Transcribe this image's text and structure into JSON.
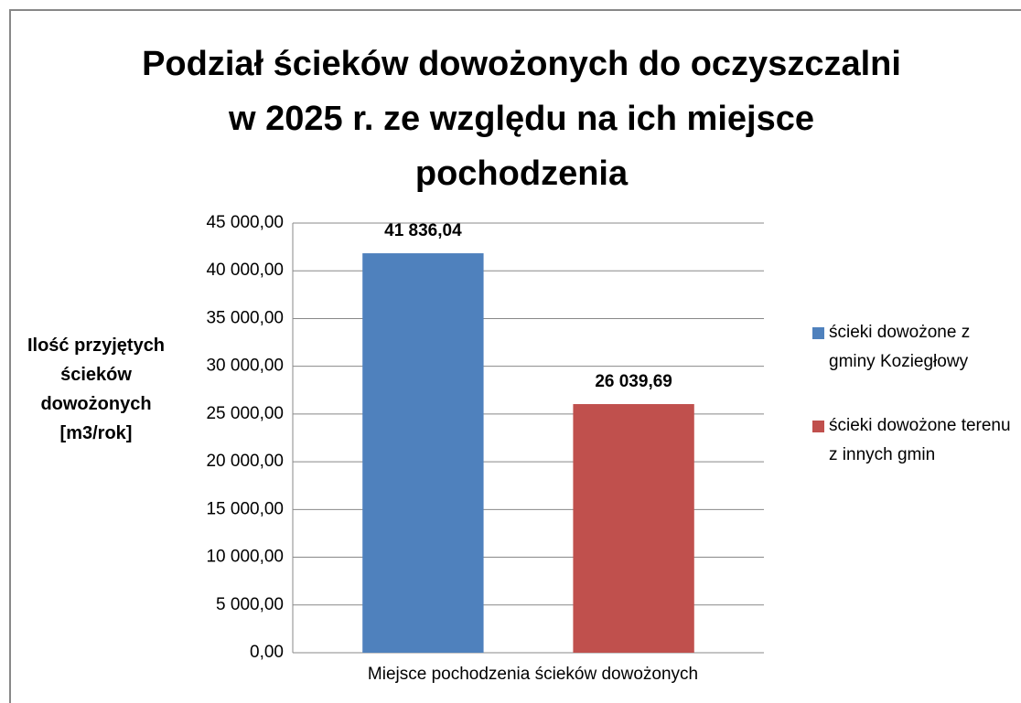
{
  "chart_data": {
    "type": "bar",
    "title": "Podział ścieków dowożonych do oczyszczalni w 2025 r. ze względu na ich miejsce pochodzenia",
    "y_label": "Ilość przyjętych ścieków dowożonych [m3/rok]",
    "categories": [
      "Miejsce pochodzenia ścieków dowożonych"
    ],
    "series": [
      {
        "name": "ścieki dowożone z gminy Koziegłowy",
        "color": "#4f81bd",
        "values": [
          41836.04
        ],
        "value_labels": [
          "41 836,04"
        ]
      },
      {
        "name": "ścieki dowożone terenu z innych gmin",
        "color": "#c0504d",
        "values": [
          26039.69
        ],
        "value_labels": [
          "26 039,69"
        ]
      }
    ],
    "ylim": [
      0,
      45000
    ],
    "yticks": [
      {
        "value": 0,
        "label": "0,00"
      },
      {
        "value": 5000,
        "label": "5 000,00"
      },
      {
        "value": 10000,
        "label": "10 000,00"
      },
      {
        "value": 15000,
        "label": "15 000,00"
      },
      {
        "value": 20000,
        "label": "20 000,00"
      },
      {
        "value": 25000,
        "label": "25 000,00"
      },
      {
        "value": 30000,
        "label": "30 000,00"
      },
      {
        "value": 35000,
        "label": "35 000,00"
      },
      {
        "value": 40000,
        "label": "40 000,00"
      },
      {
        "value": 45000,
        "label": "45 000,00"
      }
    ],
    "grid": true,
    "legend": "right"
  }
}
